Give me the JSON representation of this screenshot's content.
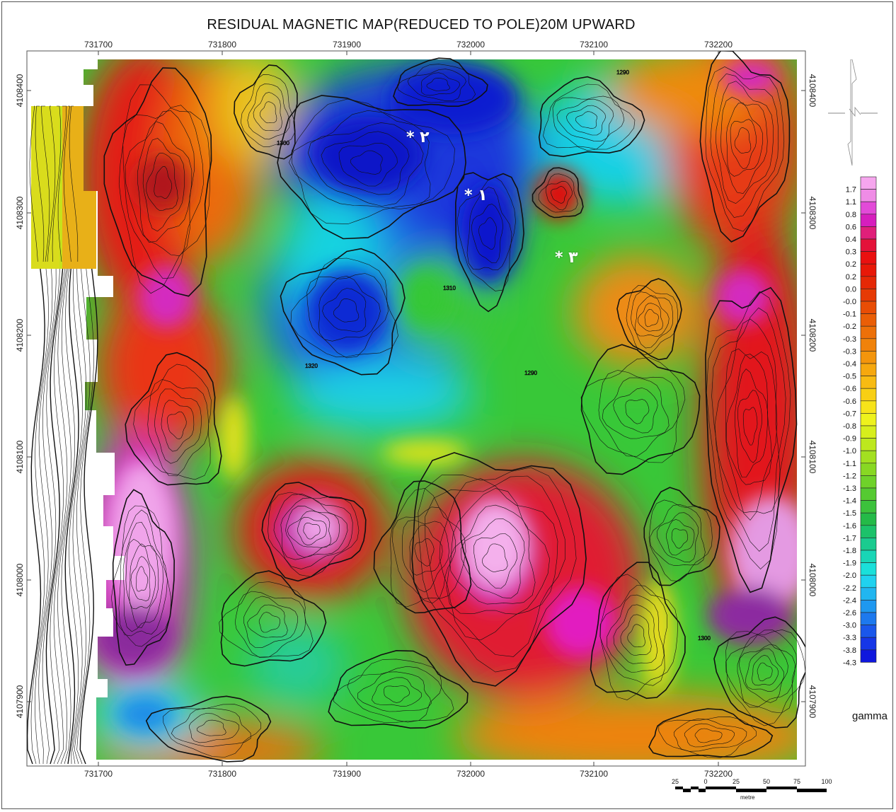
{
  "title": "RESIDUAL MAGNETIC MAP(REDUCED TO POLE)20M UPWARD",
  "axes": {
    "x_ticks": [
      "731700",
      "731800",
      "731900",
      "732000",
      "732100",
      "732200"
    ],
    "y_ticks": [
      "4108400",
      "4108300",
      "4108200",
      "4108100",
      "4108000",
      "4107900"
    ]
  },
  "markers": [
    {
      "id": "2",
      "text": "* ٢"
    },
    {
      "id": "1",
      "text": "* ١"
    },
    {
      "id": "3",
      "text": "* ٣"
    }
  ],
  "contour_labels": [
    "1290",
    "1300",
    "1310",
    "1320"
  ],
  "legend": {
    "unit": "gamma",
    "values": [
      "1.7",
      "1.1",
      "0.8",
      "0.6",
      "0.4",
      "0.3",
      "0.2",
      "0.2",
      "0.0",
      "-0.0",
      "-0.1",
      "-0.2",
      "-0.3",
      "-0.3",
      "-0.4",
      "-0.5",
      "-0.6",
      "-0.6",
      "-0.7",
      "-0.8",
      "-0.9",
      "-1.0",
      "-1.1",
      "-1.2",
      "-1.3",
      "-1.4",
      "-1.5",
      "-1.6",
      "-1.7",
      "-1.8",
      "-1.9",
      "-2.0",
      "-2.2",
      "-2.4",
      "-2.6",
      "-3.0",
      "-3.3",
      "-3.8",
      "-4.3"
    ],
    "colors": [
      "#f6a6ee",
      "#ef8ce6",
      "#e24ad8",
      "#d61ebd",
      "#e01f7a",
      "#e4123a",
      "#ea1010",
      "#e81808",
      "#e52806",
      "#e63a05",
      "#e84d05",
      "#ea5e06",
      "#ed7008",
      "#f0820a",
      "#f3950c",
      "#f6a80e",
      "#f8bb12",
      "#f8cf14",
      "#f7e319",
      "#eef21c",
      "#d7ee1c",
      "#bde81e",
      "#a3e020",
      "#88d823",
      "#6fd22a",
      "#55ca32",
      "#3cc23c",
      "#24ba48",
      "#1cc26a",
      "#1acb8f",
      "#19d6b6",
      "#1ae0da",
      "#20d2ef",
      "#21b6f0",
      "#1f98f0",
      "#1d79ee",
      "#1a57eb",
      "#1636e7",
      "#0f17dd"
    ]
  },
  "scale": {
    "labels": [
      "25",
      "0",
      "25",
      "50",
      "75",
      "100"
    ],
    "unit": "metre"
  },
  "colors": {
    "blue_min": "#0a14c8",
    "cyan": "#16d8e6",
    "green": "#2fd12c",
    "yellow": "#f2e81e",
    "orange": "#ef7b10",
    "red": "#e21414",
    "magenta": "#d61ec4",
    "pink_max": "#f2a8ee"
  }
}
